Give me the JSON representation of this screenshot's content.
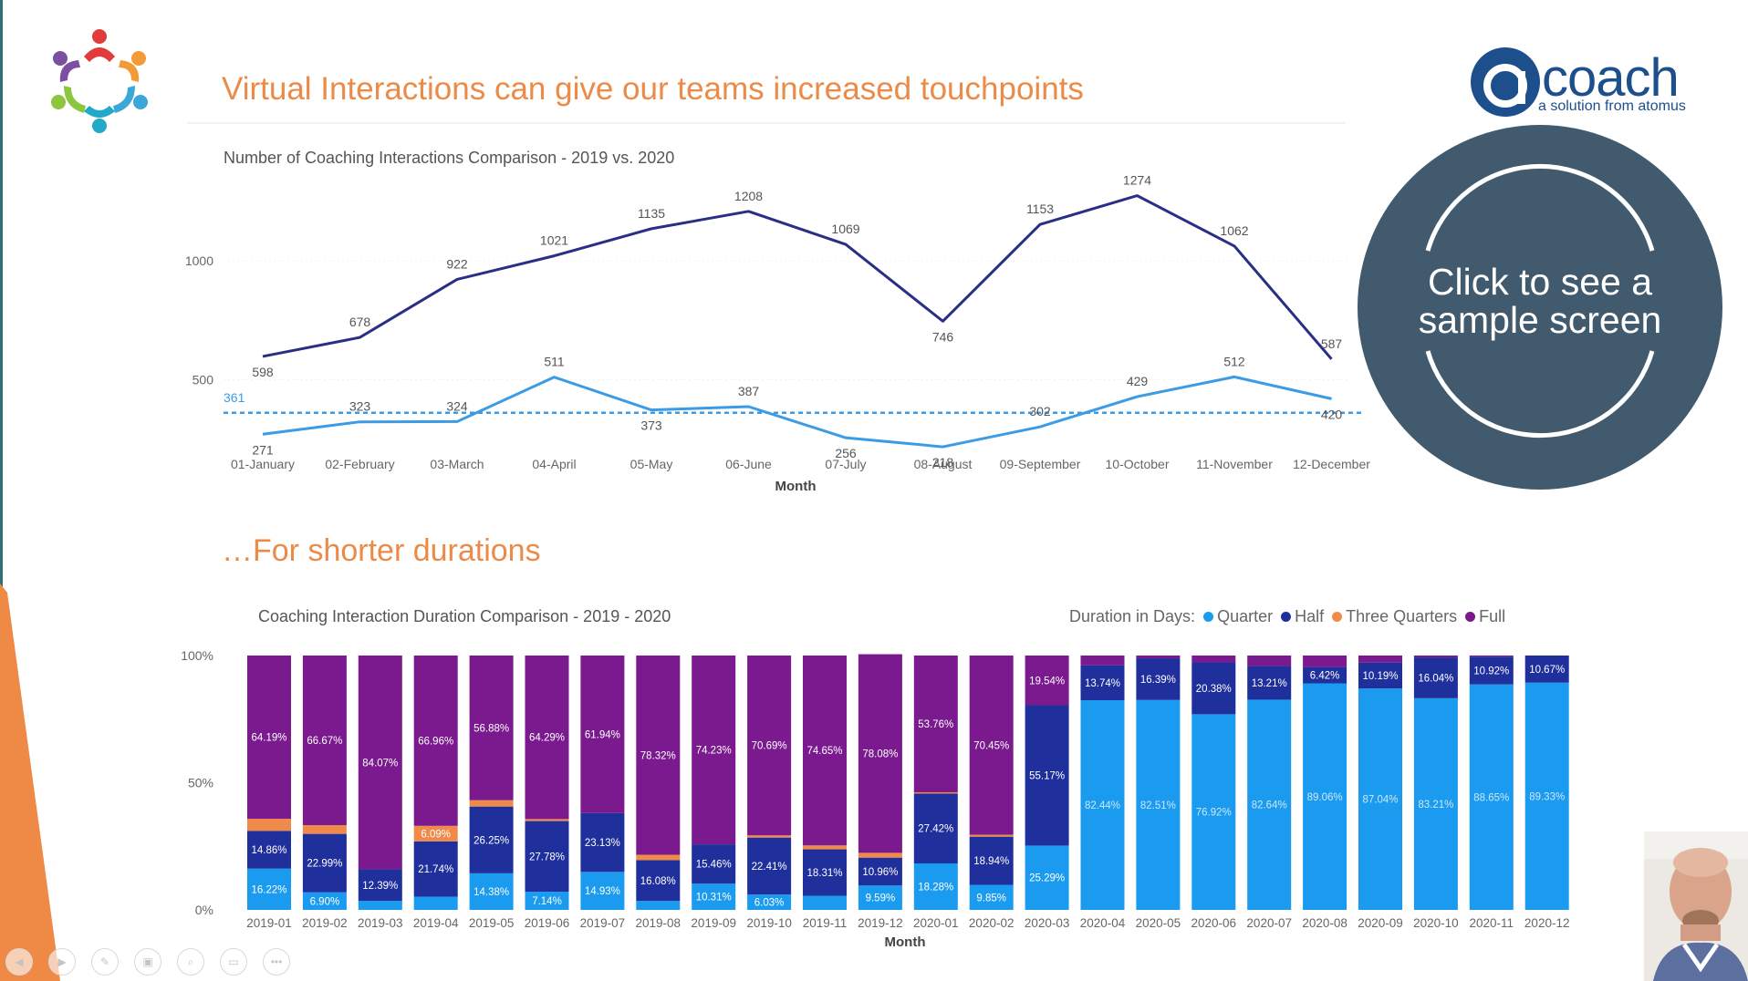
{
  "page": {
    "title": "Virtual Interactions can give our teams increased touchpoints",
    "subtitle": "…For shorter durations",
    "brand_word": "coach",
    "brand_letter": "a",
    "brand_tagline": "a solution from atomus",
    "sample_button_line1": "Click to see a",
    "sample_button_line2": "sample screen",
    "colors": {
      "title": "#ec8a47",
      "brand": "#1d4f8c",
      "circle": "#415a6d",
      "series_2019": "#2a2f86",
      "series_2020": "#3b9be5",
      "quarter": "#1a9bf0",
      "half": "#1f2f9c",
      "three_quarters": "#f08a4b",
      "full": "#7a1a8e"
    }
  },
  "controls": [
    {
      "name": "previous-slide-icon",
      "glyph": "◀"
    },
    {
      "name": "next-slide-icon",
      "glyph": "▶"
    },
    {
      "name": "pen-icon",
      "glyph": "✎"
    },
    {
      "name": "slides-icon",
      "glyph": "▣"
    },
    {
      "name": "zoom-icon",
      "glyph": "⌕"
    },
    {
      "name": "subtitles-icon",
      "glyph": "▭"
    },
    {
      "name": "more-options-icon",
      "glyph": "•••"
    }
  ],
  "chart_data": [
    {
      "type": "line",
      "title": "Number of Coaching Interactions Comparison - 2019 vs. 2020",
      "xlabel": "Month",
      "ylabel": "",
      "categories": [
        "01-January",
        "02-February",
        "03-March",
        "04-April",
        "05-May",
        "06-June",
        "07-July",
        "08-August",
        "09-September",
        "10-October",
        "11-November",
        "12-December"
      ],
      "yticks": [
        500,
        1000
      ],
      "ylim": [
        180,
        1330
      ],
      "series": [
        {
          "values": [
            598,
            678,
            922,
            1021,
            1135,
            1208,
            1069,
            746,
            1153,
            1274,
            1062,
            587
          ],
          "color": "#2a2f86"
        },
        {
          "values": [
            271,
            323,
            324,
            511,
            373,
            387,
            256,
            218,
            302,
            429,
            512,
            420
          ],
          "color": "#3b9be5"
        }
      ],
      "average_line": {
        "value": 361,
        "label": "361",
        "color": "#3b9be5",
        "style": "dashed"
      },
      "grid": false,
      "legend": "none"
    },
    {
      "type": "bar",
      "stacked": "percent",
      "title": "Coaching Interaction Duration Comparison - 2019 - 2020",
      "xlabel": "Month",
      "ylabel": "",
      "legend_title": "Duration in Days:",
      "legend_position": "top-right",
      "yticks": [
        "0%",
        "50%",
        "100%"
      ],
      "categories": [
        "2019-01",
        "2019-02",
        "2019-03",
        "2019-04",
        "2019-05",
        "2019-06",
        "2019-07",
        "2019-08",
        "2019-09",
        "2019-10",
        "2019-11",
        "2019-12",
        "2020-01",
        "2020-02",
        "2020-03",
        "2020-04",
        "2020-05",
        "2020-06",
        "2020-07",
        "2020-08",
        "2020-09",
        "2020-10",
        "2020-11",
        "2020-12"
      ],
      "series": [
        {
          "name": "Quarter",
          "color": "#1a9bf0",
          "values": [
            16.22,
            6.9,
            3.54,
            5.21,
            14.38,
            7.14,
            14.93,
            3.5,
            10.31,
            6.03,
            5.5,
            9.59,
            18.28,
            9.85,
            25.29,
            82.44,
            82.51,
            76.92,
            82.64,
            89.06,
            87.04,
            83.21,
            88.65,
            89.33
          ],
          "labels": [
            "16.22%",
            "6.90%",
            "",
            "",
            "14.38%",
            "7.14%",
            "14.93%",
            "",
            "10.31%",
            "6.03%",
            "",
            "9.59%",
            "18.28%",
            "9.85%",
            "25.29%",
            "82.44%",
            "82.51%",
            "76.92%",
            "82.64%",
            "89.06%",
            "87.04%",
            "83.21%",
            "88.65%",
            "89.33%"
          ]
        },
        {
          "name": "Half",
          "color": "#1f2f9c",
          "values": [
            14.86,
            22.99,
            12.39,
            21.74,
            26.25,
            27.78,
            23.13,
            16.08,
            15.46,
            22.41,
            18.31,
            10.96,
            27.42,
            18.94,
            55.17,
            13.74,
            16.39,
            20.38,
            13.21,
            6.42,
            10.19,
            16.04,
            10.92,
            10.67
          ],
          "labels": [
            "14.86%",
            "22.99%",
            "12.39%",
            "21.74%",
            "26.25%",
            "27.78%",
            "23.13%",
            "16.08%",
            "15.46%",
            "22.41%",
            "18.31%",
            "10.96%",
            "27.42%",
            "18.94%",
            "55.17%",
            "13.74%",
            "16.39%",
            "20.38%",
            "13.21%",
            "6.42%",
            "10.19%",
            "16.04%",
            "10.92%",
            "10.67%"
          ]
        },
        {
          "name": "Three Quarters",
          "color": "#f08a4b",
          "values": [
            4.73,
            3.44,
            0.0,
            6.09,
            2.49,
            0.79,
            0.0,
            2.1,
            0.0,
            0.87,
            1.54,
            1.88,
            0.54,
            0.76,
            0.0,
            0.0,
            0.0,
            0.0,
            0.0,
            0.0,
            0.0,
            0.0,
            0.0,
            0.0
          ],
          "labels": [
            "",
            "",
            "",
            "6.09%",
            "",
            "",
            "",
            "",
            "",
            "",
            "",
            "",
            "",
            "",
            "",
            "",
            "",
            "",
            "",
            "",
            "",
            "",
            "",
            ""
          ]
        },
        {
          "name": "Full",
          "color": "#7a1a8e",
          "values": [
            64.19,
            66.67,
            84.07,
            66.96,
            56.88,
            64.29,
            61.94,
            78.32,
            74.23,
            70.69,
            74.65,
            78.08,
            53.76,
            70.45,
            19.54,
            3.82,
            1.1,
            2.7,
            4.15,
            4.52,
            2.77,
            0.75,
            0.43,
            0.0
          ],
          "labels": [
            "64.19%",
            "66.67%",
            "84.07%",
            "66.96%",
            "56.88%",
            "64.29%",
            "61.94%",
            "78.32%",
            "74.23%",
            "70.69%",
            "74.65%",
            "78.08%",
            "53.76%",
            "70.45%",
            "19.54%",
            "",
            "",
            "",
            "",
            "",
            "",
            "",
            "",
            ""
          ]
        }
      ]
    }
  ]
}
